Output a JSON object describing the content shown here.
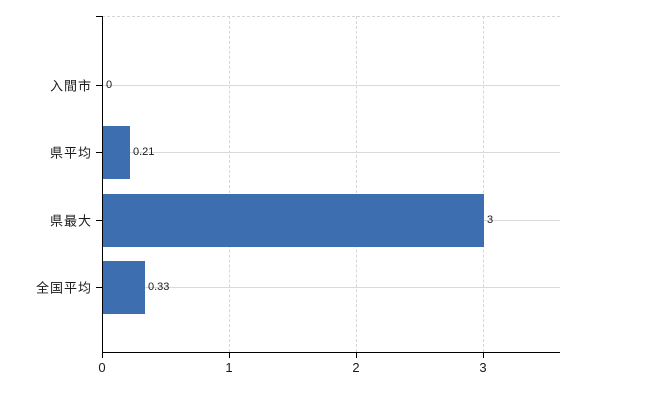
{
  "chart_data": {
    "type": "bar",
    "orientation": "horizontal",
    "categories": [
      "入間市",
      "県平均",
      "県最大",
      "全国平均"
    ],
    "values": [
      0,
      0.21,
      3,
      0.33
    ],
    "value_labels": [
      "0",
      "0.21",
      "3",
      "0.33"
    ],
    "x_ticks": [
      0,
      1,
      2,
      3
    ],
    "x_tick_labels": [
      "0",
      "1",
      "2",
      "3"
    ],
    "xlim": [
      0,
      3.6
    ],
    "grid": true,
    "title": "",
    "bar_color": "#3d6eb0",
    "h_gridline_color": "#d6dcd6",
    "v_gridline_color": "#d9d4da",
    "axis_color": "#000000",
    "text_color": "#1a1a1a"
  }
}
